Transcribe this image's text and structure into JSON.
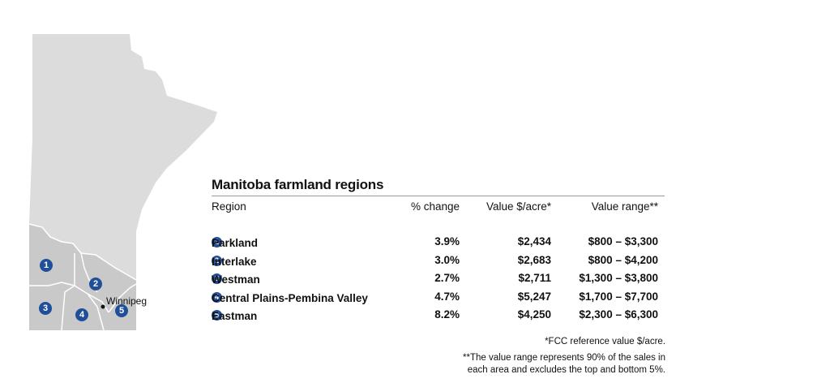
{
  "map": {
    "city": "Winnipeg",
    "colors": {
      "province": "#dcdcdc",
      "agri_regions": "#c8c8c8",
      "borders": "#ffffff",
      "badge": "#1f4f99"
    },
    "markers": [
      "1",
      "2",
      "3",
      "4",
      "5"
    ]
  },
  "table": {
    "title": "Manitoba farmland regions",
    "headers": {
      "region": "Region",
      "change": "% change",
      "value": "Value $/acre*",
      "range": "Value range**"
    },
    "rows": [
      {
        "num": "1",
        "name": "Parkland",
        "change": "3.9%",
        "value": "$2,434",
        "range": "$800 – $3,300"
      },
      {
        "num": "2",
        "name": "Interlake",
        "change": "3.0%",
        "value": "$2,683",
        "range": "$800 – $4,200"
      },
      {
        "num": "3",
        "name": "Westman",
        "change": "2.7%",
        "value": "$2,711",
        "range": "$1,300 – $3,800"
      },
      {
        "num": "4",
        "name": "Central Plains-Pembina Valley",
        "change": "4.7%",
        "value": "$5,247",
        "range": "$1,700 – $7,700"
      },
      {
        "num": "5",
        "name": "Eastman",
        "change": "8.2%",
        "value": "$4,250",
        "range": "$2,300 – $6,300"
      }
    ]
  },
  "footnotes": {
    "fcc": "*FCC reference value $/acre.",
    "range_line1": "**The value range represents 90% of the sales in",
    "range_line2": "each area and excludes the top and bottom 5%."
  }
}
